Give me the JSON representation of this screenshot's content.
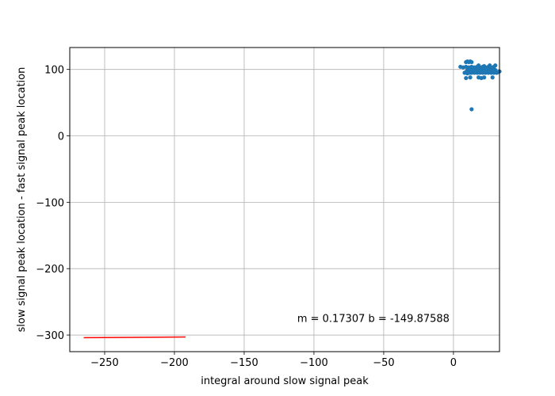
{
  "chart_data": {
    "type": "scatter",
    "title": "",
    "xlabel": "integral around slow signal peak",
    "ylabel": "slow signal peak location - fast signal peak location",
    "xlim": [
      -275,
      33
    ],
    "ylim": [
      -325,
      133
    ],
    "xticks": [
      -250,
      -200,
      -150,
      -100,
      -50,
      0
    ],
    "xtick_labels": [
      "−250",
      "−200",
      "−150",
      "−100",
      "−50",
      "0"
    ],
    "yticks": [
      -300,
      -200,
      -100,
      0,
      100
    ],
    "ytick_labels": [
      "−300",
      "−200",
      "−100",
      "0",
      "100"
    ],
    "grid": true,
    "legend": "none",
    "annotation": "m = 0.17307 b = -149.87588",
    "annotation_pos": [
      -112,
      -280
    ],
    "series": [
      {
        "kind": "scatter",
        "color": "#1f77b4",
        "points": [
          [
            5,
            104
          ],
          [
            7,
            103
          ],
          [
            8,
            95
          ],
          [
            9,
            96
          ],
          [
            10,
            94
          ],
          [
            11,
            96
          ],
          [
            12,
            95
          ],
          [
            13,
            95
          ],
          [
            14,
            96
          ],
          [
            15,
            95
          ],
          [
            16,
            96
          ],
          [
            17,
            95
          ],
          [
            18,
            96
          ],
          [
            19,
            95
          ],
          [
            20,
            96
          ],
          [
            21,
            95
          ],
          [
            22,
            96
          ],
          [
            23,
            95
          ],
          [
            24,
            96
          ],
          [
            25,
            95
          ],
          [
            26,
            96
          ],
          [
            27,
            95
          ],
          [
            28,
            96
          ],
          [
            29,
            95
          ],
          [
            30,
            96
          ],
          [
            31,
            95
          ],
          [
            32,
            96
          ],
          [
            33,
            97
          ],
          [
            9,
            104
          ],
          [
            11,
            103
          ],
          [
            13,
            104
          ],
          [
            15,
            103
          ],
          [
            17,
            104
          ],
          [
            19,
            103
          ],
          [
            21,
            104
          ],
          [
            23,
            103
          ],
          [
            25,
            104
          ],
          [
            27,
            103
          ],
          [
            29,
            104
          ],
          [
            10,
            99
          ],
          [
            12,
            100
          ],
          [
            14,
            99
          ],
          [
            16,
            100
          ],
          [
            18,
            99
          ],
          [
            20,
            100
          ],
          [
            22,
            99
          ],
          [
            24,
            100
          ],
          [
            26,
            99
          ],
          [
            28,
            100
          ],
          [
            30,
            99
          ],
          [
            9,
            111
          ],
          [
            10,
            112
          ],
          [
            11,
            111
          ],
          [
            12,
            112
          ],
          [
            13,
            111
          ],
          [
            18,
            106
          ],
          [
            22,
            105
          ],
          [
            26,
            106
          ],
          [
            30,
            106
          ],
          [
            9,
            87
          ],
          [
            12,
            88
          ],
          [
            18,
            88
          ],
          [
            20,
            87
          ],
          [
            22,
            88
          ],
          [
            28,
            88
          ],
          [
            13,
            40
          ]
        ]
      },
      {
        "kind": "line",
        "color": "#ff0000",
        "points": [
          [
            -265,
            -304
          ],
          [
            -192,
            -303
          ]
        ]
      }
    ]
  }
}
